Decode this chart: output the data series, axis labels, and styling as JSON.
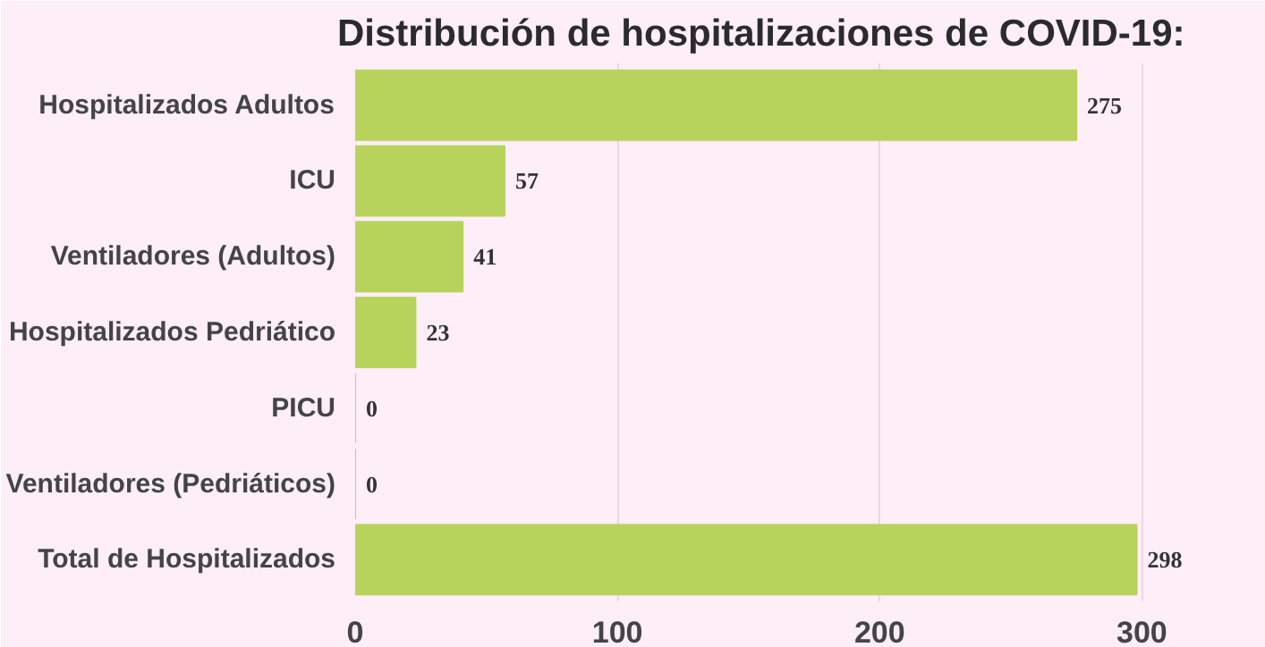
{
  "chart_data": {
    "type": "bar",
    "orientation": "horizontal",
    "title": "Distribución de hospitalizaciones de COVID-19:",
    "categories": [
      "Hospitalizados Adultos",
      "ICU",
      "Ventiladores (Adultos)",
      "Hospitalizados Pedriático",
      "PICU",
      "Ventiladores (Pedriáticos)",
      "Total de Hospitalizados"
    ],
    "values": [
      275,
      57,
      41,
      23,
      0,
      0,
      298
    ],
    "color": "#b8d35c",
    "xlim": [
      0,
      320
    ],
    "xticks": [
      0,
      100,
      200,
      300
    ],
    "grid": "x",
    "data_labels": true
  }
}
